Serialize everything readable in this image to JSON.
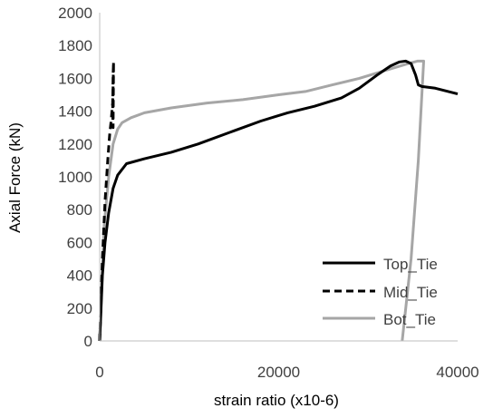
{
  "chart_data": {
    "type": "line",
    "title": "",
    "xlabel": "strain ratio (x10-6)",
    "ylabel": "Axial Force (kN)",
    "xlim": [
      0,
      40000
    ],
    "ylim": [
      0,
      2000
    ],
    "xticks": [
      0,
      20000,
      40000
    ],
    "yticks": [
      0,
      200,
      400,
      600,
      800,
      1000,
      1200,
      1400,
      1600,
      1800,
      2000
    ],
    "grid": false,
    "legend_position": "bottom-right",
    "series": [
      {
        "name": "Top_Tie",
        "style": "solid",
        "color": "#000000",
        "x": [
          0,
          300,
          600,
          1000,
          1500,
          2000,
          3000,
          5000,
          8000,
          11000,
          15000,
          18000,
          21000,
          24000,
          27000,
          29000,
          31000,
          32500,
          33500,
          34200,
          34800,
          35300,
          35600,
          36000,
          37500,
          40000
        ],
        "y": [
          0,
          400,
          600,
          780,
          930,
          1010,
          1080,
          1110,
          1150,
          1200,
          1280,
          1340,
          1390,
          1430,
          1480,
          1540,
          1620,
          1675,
          1700,
          1705,
          1690,
          1620,
          1560,
          1550,
          1540,
          1505
        ]
      },
      {
        "name": "Mid_Tie",
        "style": "dashed",
        "color": "#000000",
        "x": [
          0,
          300,
          600,
          900,
          1100,
          1300,
          1450,
          1500,
          1550,
          1500,
          1450,
          1500,
          1550
        ],
        "y": [
          0,
          500,
          850,
          1100,
          1250,
          1350,
          1450,
          1550,
          1700,
          1620,
          1400,
          1300,
          1700
        ]
      },
      {
        "name": "Bot_Tie",
        "style": "solid",
        "color": "#a6a6a6",
        "x": [
          0,
          500,
          1000,
          1500,
          2000,
          2500,
          3500,
          5000,
          8000,
          12000,
          16000,
          20000,
          23000,
          26000,
          29000,
          32000,
          34500,
          35500,
          36200,
          36000,
          35600,
          35200,
          34800,
          34300,
          33800
        ],
        "y": [
          0,
          700,
          1000,
          1200,
          1290,
          1330,
          1360,
          1390,
          1420,
          1450,
          1470,
          1500,
          1520,
          1560,
          1600,
          1650,
          1690,
          1705,
          1705,
          1500,
          1100,
          800,
          500,
          250,
          0
        ]
      }
    ]
  }
}
